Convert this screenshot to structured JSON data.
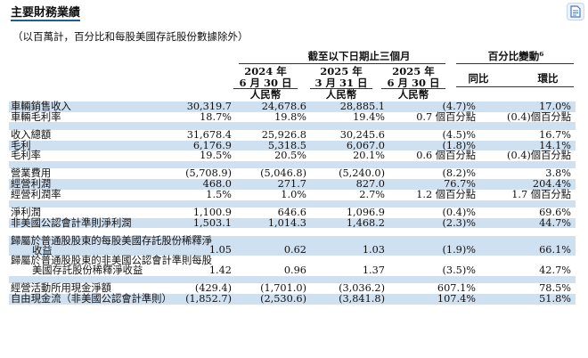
{
  "title": "主要財務業績",
  "subtitle": "（以百萬計，百分比和每股美國存託股份數據除外）",
  "corner_icon": "document-icon",
  "header": {
    "group_left": "截至以下日期止三個月",
    "group_right": "百分比變動⁶",
    "col1": [
      "2024 年",
      "6 月 30 日",
      "人民幣"
    ],
    "col2": [
      "2025 年",
      "3 月 31 日",
      "人民幣"
    ],
    "col3": [
      "2025 年",
      "6 月 30 日",
      "人民幣"
    ],
    "col4": "同比",
    "col5": "環比"
  },
  "rows": [
    {
      "label": "車輛銷售收入",
      "v1": "30,319.7",
      "v2": "24,678.6",
      "v3": "28,885.1",
      "v4": "(4.7)%",
      "v5": "17.0%"
    },
    {
      "label": "車輛毛利率",
      "v1": "18.7%",
      "v2": "19.8%",
      "v3": "19.4%",
      "v4": "0.7 個百分點",
      "v5": "(0.4)個百分點"
    },
    {
      "label": "收入總額",
      "v1": "31,678.4",
      "v2": "25,926.8",
      "v3": "30,245.6",
      "v4": "(4.5)%",
      "v5": "16.7%"
    },
    {
      "label": "毛利",
      "v1": "6,176.9",
      "v2": "5,318.5",
      "v3": "6,067.0",
      "v4": "(1.8)%",
      "v5": "14.1%"
    },
    {
      "label": "毛利率",
      "v1": "19.5%",
      "v2": "20.5%",
      "v3": "20.1%",
      "v4": "0.6 個百分點",
      "v5": "(0.4)個百分點"
    },
    {
      "label": "營業費用",
      "v1": "(5,708.9)",
      "v2": "(5,046.8)",
      "v3": "(5,240.0)",
      "v4": "(8.2)%",
      "v5": "3.8%"
    },
    {
      "label": "經營利潤",
      "v1": "468.0",
      "v2": "271.7",
      "v3": "827.0",
      "v4": "76.7%",
      "v5": "204.4%"
    },
    {
      "label": "經營利潤率",
      "v1": "1.5%",
      "v2": "1.0%",
      "v3": "2.7%",
      "v4": "1.2 個百分點",
      "v5": "1.7 個百分點"
    },
    {
      "label": "淨利潤",
      "v1": "1,100.9",
      "v2": "646.6",
      "v3": "1,096.9",
      "v4": "(0.4)%",
      "v5": "69.6%"
    },
    {
      "label": "非美國公認會計準則淨利潤",
      "v1": "1,503.1",
      "v2": "1,014.3",
      "v3": "1,468.2",
      "v4": "(2.3)%",
      "v5": "44.7%"
    },
    {
      "label": "歸屬於普通股股東的每股美國存託股份稀釋淨",
      "label2": "收益",
      "v1": "1.05",
      "v2": "0.62",
      "v3": "1.03",
      "v4": "(1.9)%",
      "v5": "66.1%"
    },
    {
      "label": "歸屬於普通股股東的非美國公認會計準則每股",
      "label2": "美國存託股份稀釋淨收益",
      "v1": "1.42",
      "v2": "0.96",
      "v3": "1.37",
      "v4": "(3.5)%",
      "v5": "42.7%"
    },
    {
      "label": "經營活動所用現金淨額",
      "v1": "(429.4)",
      "v2": "(1,701.0)",
      "v3": "(3,036.2)",
      "v4": "607.1%",
      "v5": "78.5%"
    },
    {
      "label": "自由現金流（非美國公認會計準則）",
      "v1": "(1,852.7)",
      "v2": "(2,530.6)",
      "v3": "(3,841.8)",
      "v4": "107.4%",
      "v5": "51.8%"
    }
  ]
}
